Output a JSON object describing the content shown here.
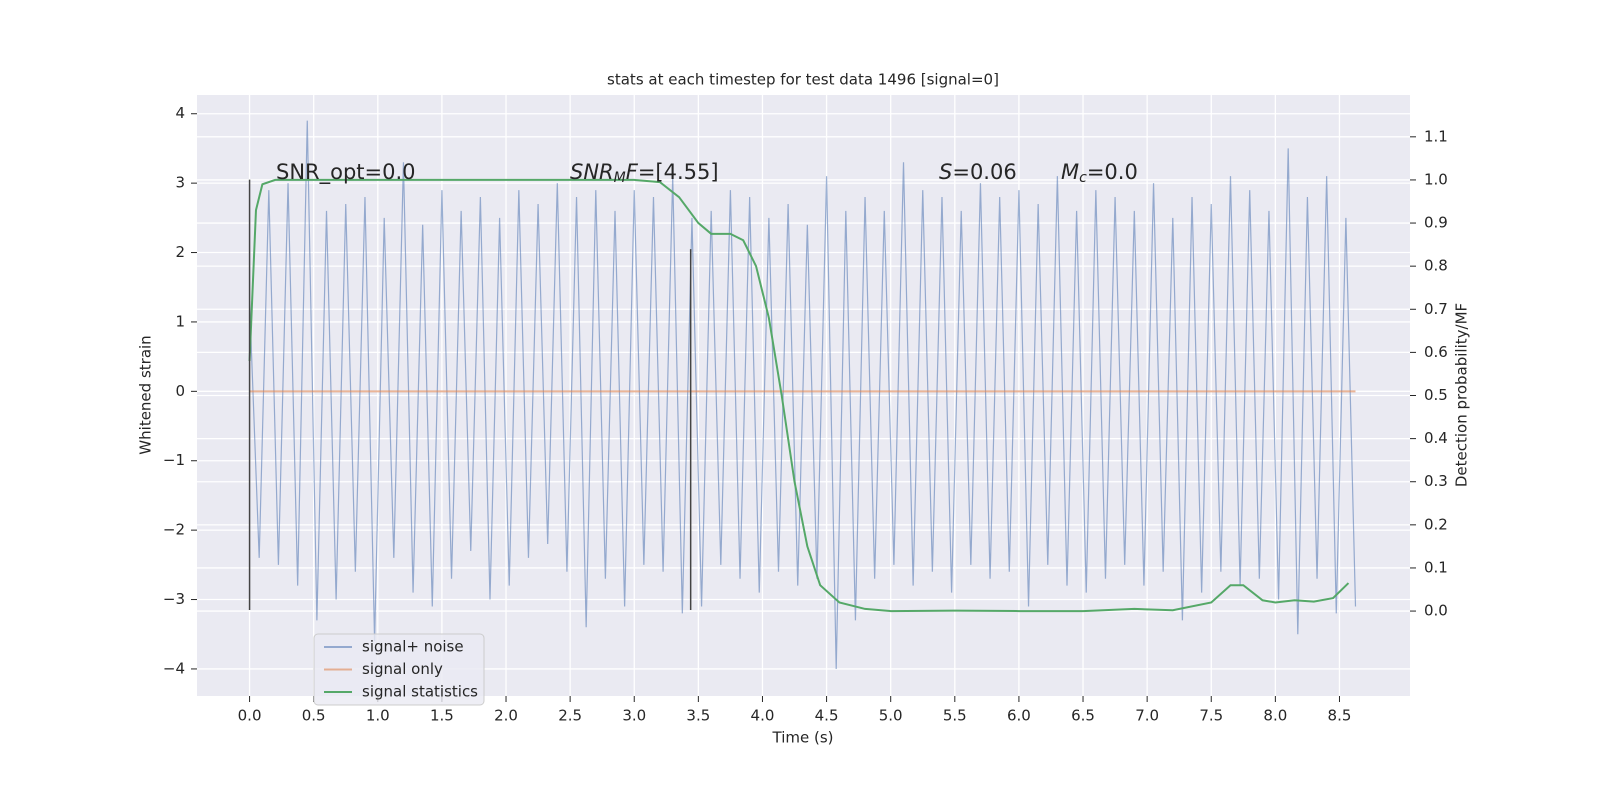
{
  "chart_data": {
    "type": "line",
    "title": "stats at each timestep for test data 1496 [signal=0]",
    "xlabel": "Time (s)",
    "ylabel": "Whitened strain",
    "y2label": "Detection probability/MF",
    "xlim": [
      -0.41,
      9.05
    ],
    "xticks": [
      {
        "value": 0,
        "label": "0.0"
      },
      0.5,
      {
        "value": 1,
        "label": "1.0"
      },
      1.5,
      {
        "value": 2,
        "label": "2.0"
      },
      2.5,
      {
        "value": 3,
        "label": "3.0"
      },
      3.5,
      {
        "value": 4,
        "label": "4.0"
      },
      4.5,
      {
        "value": 5,
        "label": "5.0"
      },
      5.5,
      {
        "value": 6,
        "label": "6.0"
      },
      6.5,
      {
        "value": 7,
        "label": "7.0"
      },
      7.5,
      {
        "value": 8,
        "label": "8.0"
      },
      8.5
    ],
    "ylim": [
      -4.39,
      4.27
    ],
    "yticks": [
      {
        "value": -4,
        "label": "−4"
      },
      {
        "value": -3,
        "label": "−3"
      },
      {
        "value": -2,
        "label": "−2"
      },
      {
        "value": -1,
        "label": "−1"
      },
      0,
      1,
      2,
      3,
      4
    ],
    "y2lim": [
      -0.197,
      1.197
    ],
    "y2ticks": [
      {
        "value": 0,
        "label": "0.0"
      },
      0.1,
      0.2,
      0.3,
      0.4,
      0.5,
      0.6,
      0.7,
      0.8,
      0.9,
      {
        "value": 1,
        "label": "1.0"
      },
      1.1
    ],
    "grid": true,
    "legend": "lower left",
    "series": [
      {
        "name": "signal+ noise",
        "color": "#4c72b0",
        "x": [
          0,
          0.075,
          0.15,
          0.225,
          0.3,
          0.375,
          0.45,
          0.525,
          0.6,
          0.675,
          0.75,
          0.825,
          0.9,
          0.975,
          1.05,
          1.125,
          1.2,
          1.275,
          1.35,
          1.425,
          1.5,
          1.575,
          1.65,
          1.725,
          1.8,
          1.875,
          1.95,
          2.025,
          2.1,
          2.175,
          2.25,
          2.325,
          2.4,
          2.475,
          2.55,
          2.625,
          2.7,
          2.775,
          2.85,
          2.925,
          3.0,
          3.075,
          3.15,
          3.225,
          3.3,
          3.375,
          3.45,
          3.525,
          3.6,
          3.675,
          3.75,
          3.825,
          3.9,
          3.975,
          4.05,
          4.125,
          4.2,
          4.275,
          4.35,
          4.425,
          4.5,
          4.575,
          4.65,
          4.725,
          4.8,
          4.875,
          4.95,
          5.025,
          5.1,
          5.175,
          5.25,
          5.325,
          5.4,
          5.475,
          5.55,
          5.625,
          5.7,
          5.775,
          5.85,
          5.925,
          6.0,
          6.075,
          6.15,
          6.225,
          6.3,
          6.375,
          6.45,
          6.525,
          6.6,
          6.675,
          6.75,
          6.825,
          6.9,
          6.975,
          7.05,
          7.125,
          7.2,
          7.275,
          7.35,
          7.425,
          7.5,
          7.575,
          7.65,
          7.725,
          7.8,
          7.875,
          7.95,
          8.025,
          8.1,
          8.175,
          8.25,
          8.325,
          8.4,
          8.475,
          8.55,
          8.625
        ],
        "values": [
          1.3,
          -2.4,
          2.9,
          -2.5,
          3.0,
          -2.8,
          3.9,
          -3.3,
          2.6,
          -3.0,
          2.7,
          -2.6,
          2.8,
          -3.6,
          2.5,
          -2.4,
          3.3,
          -2.9,
          2.4,
          -3.1,
          2.9,
          -2.7,
          2.6,
          -2.3,
          2.8,
          -3.0,
          2.5,
          -2.8,
          2.9,
          -2.4,
          2.7,
          -2.2,
          3.0,
          -2.6,
          2.8,
          -3.4,
          2.9,
          -2.7,
          2.6,
          -3.1,
          2.9,
          -2.5,
          2.8,
          -2.6,
          3.1,
          -3.2,
          2.5,
          -3.1,
          2.6,
          -2.5,
          2.9,
          -2.7,
          2.8,
          -2.9,
          2.5,
          -2.6,
          2.7,
          -2.8,
          2.4,
          -2.7,
          3.1,
          -4.0,
          2.6,
          -3.3,
          2.8,
          -2.7,
          2.6,
          -2.5,
          3.3,
          -2.8,
          2.9,
          -2.6,
          2.8,
          -2.9,
          2.6,
          -2.5,
          3.0,
          -2.7,
          2.8,
          -2.6,
          2.9,
          -3.1,
          2.7,
          -2.5,
          3.1,
          -2.8,
          2.6,
          -2.9,
          2.9,
          -2.7,
          2.8,
          -2.5,
          2.6,
          -2.8,
          3.0,
          -2.6,
          2.5,
          -3.3,
          2.8,
          -2.9,
          2.7,
          -2.6,
          3.1,
          -2.8,
          2.9,
          -2.7,
          2.6,
          -3.0,
          3.5,
          -3.5,
          2.8,
          -2.7,
          3.1,
          -3.2,
          2.5,
          -3.1
        ]
      },
      {
        "name": "signal only",
        "color": "#dd8452",
        "x": [
          0,
          8.625
        ],
        "values": [
          0,
          0
        ]
      },
      {
        "name": "signal statistics",
        "color": "#55a868",
        "axis": "y2",
        "x": [
          0,
          0.05,
          0.1,
          0.2,
          1.0,
          2.0,
          3.0,
          3.2,
          3.35,
          3.5,
          3.6,
          3.75,
          3.85,
          3.95,
          4.05,
          4.15,
          4.25,
          4.35,
          4.45,
          4.6,
          4.8,
          5.0,
          5.5,
          6.0,
          6.5,
          6.9,
          7.2,
          7.5,
          7.65,
          7.75,
          7.9,
          8.0,
          8.15,
          8.3,
          8.45,
          8.57
        ],
        "values": [
          0.58,
          0.93,
          0.99,
          1.0,
          1.0,
          1.0,
          1.0,
          0.995,
          0.96,
          0.9,
          0.875,
          0.875,
          0.86,
          0.8,
          0.68,
          0.5,
          0.3,
          0.15,
          0.06,
          0.02,
          0.005,
          0.0,
          0.001,
          0.0,
          0.0,
          0.005,
          0.002,
          0.02,
          0.06,
          0.06,
          0.025,
          0.02,
          0.025,
          0.022,
          0.03,
          0.065
        ]
      }
    ],
    "vlines": [
      {
        "x": 0,
        "ymin": -3.15,
        "ymax": 3.05
      },
      {
        "x": 3.44,
        "ymin": -3.15,
        "ymax": 2.05
      }
    ],
    "annotations": [
      [
        {
          "text": "SNR_opt=0.0"
        }
      ],
      [
        {
          "text": "SNR",
          "style": "italic"
        },
        {
          "text": "M",
          "style": "sub"
        },
        {
          "text": "F=[4.55]",
          "style": "italic-first"
        }
      ],
      [
        {
          "text": "S",
          "style": "italic"
        },
        {
          "text": "=0.06"
        }
      ],
      [
        {
          "text": "M",
          "style": "italic"
        },
        {
          "text": "c",
          "style": "sub"
        },
        {
          "text": "=0.0"
        }
      ]
    ]
  }
}
